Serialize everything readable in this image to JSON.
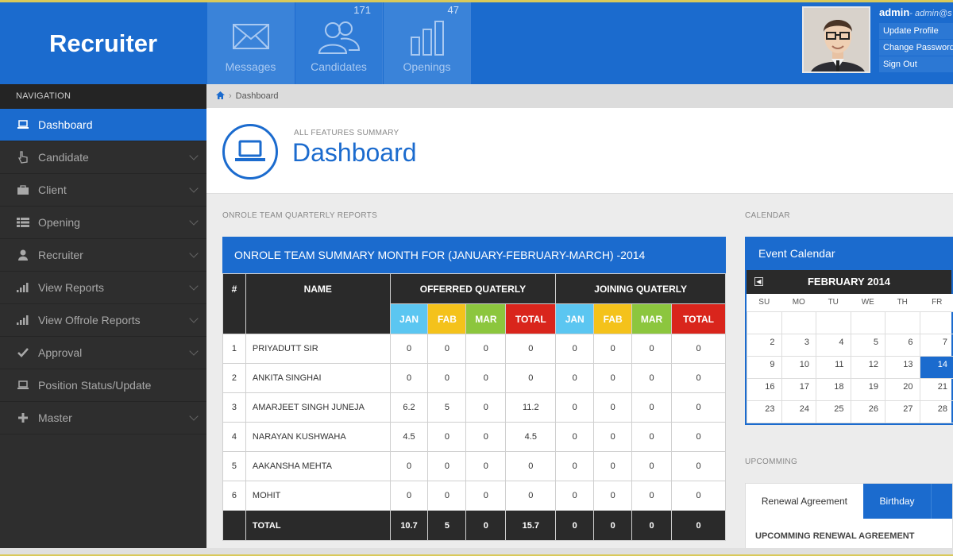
{
  "app": {
    "brand": "Recruiter"
  },
  "top_tiles": [
    {
      "label": "Messages",
      "count": ""
    },
    {
      "label": "Candidates",
      "count": "171"
    },
    {
      "label": "Openings",
      "count": "47"
    }
  ],
  "user": {
    "name": "admin",
    "email": "- admin@s",
    "menu": [
      "Update Profile",
      "Change Password",
      "Sign Out"
    ]
  },
  "sidebar": {
    "heading": "NAVIGATION",
    "items": [
      {
        "label": "Dashboard",
        "icon": "laptop-icon",
        "active": true
      },
      {
        "label": "Candidate",
        "icon": "hand-pointer-icon"
      },
      {
        "label": "Client",
        "icon": "briefcase-icon"
      },
      {
        "label": "Opening",
        "icon": "list-icon"
      },
      {
        "label": "Recruiter",
        "icon": "user-icon"
      },
      {
        "label": "View Reports",
        "icon": "signal-icon"
      },
      {
        "label": "View Offrole Reports",
        "icon": "signal-icon"
      },
      {
        "label": "Approval",
        "icon": "check-icon"
      },
      {
        "label": "Position Status/Update",
        "icon": "laptop-icon"
      },
      {
        "label": "Master",
        "icon": "plus-icon"
      }
    ]
  },
  "breadcrumb": {
    "current": "Dashboard"
  },
  "header": {
    "subtitle": "ALL FEATURES SUMMARY",
    "title": "Dashboard"
  },
  "report": {
    "section_label": "ONROLE TEAM QUARTERLY REPORTS",
    "panel_title": "ONROLE TEAM SUMMARY MONTH FOR (JANUARY-FEBRUARY-MARCH) -2014",
    "columns": {
      "num": "#",
      "name": "NAME",
      "offered": "OFFERRED QUATERLY",
      "joining": "JOINING QUATERLY",
      "months": [
        "JAN",
        "FAB",
        "MAR",
        "TOTAL"
      ]
    },
    "rows": [
      {
        "num": "1",
        "name": "PRIYADUTT SIR",
        "offered": [
          "0",
          "0",
          "0",
          "0"
        ],
        "joining": [
          "0",
          "0",
          "0",
          "0"
        ]
      },
      {
        "num": "2",
        "name": "ANKITA SINGHAI",
        "offered": [
          "0",
          "0",
          "0",
          "0"
        ],
        "joining": [
          "0",
          "0",
          "0",
          "0"
        ]
      },
      {
        "num": "3",
        "name": "AMARJEET SINGH JUNEJA",
        "offered": [
          "6.2",
          "5",
          "0",
          "11.2"
        ],
        "joining": [
          "0",
          "0",
          "0",
          "0"
        ]
      },
      {
        "num": "4",
        "name": "NARAYAN KUSHWAHA",
        "offered": [
          "4.5",
          "0",
          "0",
          "4.5"
        ],
        "joining": [
          "0",
          "0",
          "0",
          "0"
        ]
      },
      {
        "num": "5",
        "name": "AAKANSHA MEHTA",
        "offered": [
          "0",
          "0",
          "0",
          "0"
        ],
        "joining": [
          "0",
          "0",
          "0",
          "0"
        ]
      },
      {
        "num": "6",
        "name": "MOHIT",
        "offered": [
          "0",
          "0",
          "0",
          "0"
        ],
        "joining": [
          "0",
          "0",
          "0",
          "0"
        ]
      }
    ],
    "total": {
      "label": "TOTAL",
      "offered": [
        "10.7",
        "5",
        "0",
        "15.7"
      ],
      "joining": [
        "0",
        "0",
        "0",
        "0"
      ]
    }
  },
  "calendar": {
    "section_label": "CALENDAR",
    "panel_title": "Event Calendar",
    "month": "FEBRUARY 2014",
    "weekdays": [
      "SU",
      "MO",
      "TU",
      "WE",
      "TH",
      "FR"
    ],
    "weeks": [
      [
        "",
        "",
        "",
        "",
        "",
        ""
      ],
      [
        "2",
        "3",
        "4",
        "5",
        "6",
        "7"
      ],
      [
        "9",
        "10",
        "11",
        "12",
        "13",
        "14"
      ],
      [
        "16",
        "17",
        "18",
        "19",
        "20",
        "21"
      ],
      [
        "23",
        "24",
        "25",
        "26",
        "27",
        "28"
      ]
    ],
    "today": "14"
  },
  "upcoming": {
    "section_label": "UPCOMMING",
    "tabs": [
      "Renewal Agreement",
      "Birthday"
    ],
    "heading": "UPCOMMING RENEWAL AGREEMENT"
  },
  "colors": {
    "primary": "#1b6bce",
    "dark": "#2a2a2a",
    "jan": "#5bc6f1",
    "fab": "#f4c21b",
    "mar": "#8cc63e",
    "total": "#d9251c"
  }
}
